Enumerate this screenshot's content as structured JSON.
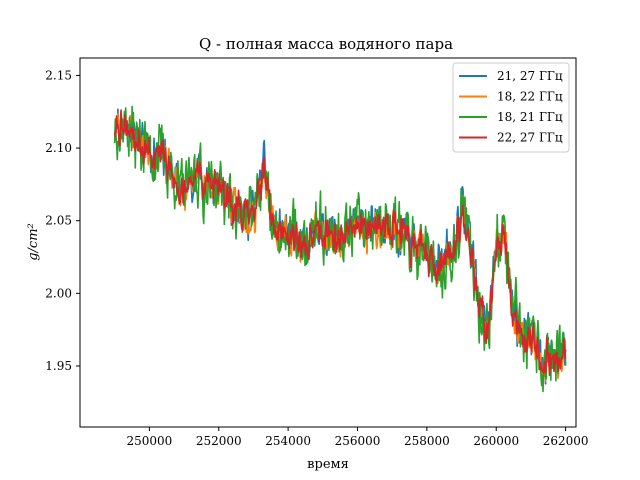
{
  "chart_data": {
    "type": "line",
    "title": "Q - полная масса водяного пара",
    "xlabel": "время",
    "ylabel": "g/cm²",
    "xlim": [
      248000,
      262300
    ],
    "ylim": [
      1.908,
      2.162
    ],
    "x_ticks": [
      250000,
      252000,
      254000,
      256000,
      258000,
      260000,
      262000
    ],
    "x_tick_labels": [
      "250000",
      "252000",
      "254000",
      "256000",
      "258000",
      "260000",
      "262000"
    ],
    "y_ticks": [
      1.95,
      2.0,
      2.05,
      2.1,
      2.15
    ],
    "y_tick_labels": [
      "1.95",
      "2.00",
      "2.05",
      "2.10",
      "2.15"
    ],
    "grid": false,
    "legend_position": "top-right",
    "x_range": [
      249000,
      262000
    ],
    "trend": {
      "x": [
        249000,
        249500,
        250000,
        250500,
        251000,
        251500,
        252000,
        252500,
        253000,
        253300,
        253600,
        254000,
        254500,
        255000,
        255500,
        256000,
        256500,
        257000,
        257500,
        258000,
        258300,
        258700,
        259000,
        259200,
        259500,
        259800,
        260000,
        260200,
        260500,
        260800,
        261000,
        261300,
        261600,
        262000
      ],
      "y": [
        2.115,
        2.112,
        2.098,
        2.09,
        2.068,
        2.08,
        2.075,
        2.058,
        2.054,
        2.086,
        2.04,
        2.042,
        2.033,
        2.046,
        2.038,
        2.046,
        2.046,
        2.049,
        2.035,
        2.025,
        2.022,
        2.025,
        2.057,
        2.04,
        1.993,
        1.97,
        2.04,
        2.045,
        1.983,
        1.97,
        1.975,
        1.958,
        1.955,
        1.955
      ]
    },
    "series": [
      {
        "name": "21, 27 ГГц",
        "color": "#1f77b4",
        "noise": 0.01,
        "seed": 11,
        "offset": 0.001
      },
      {
        "name": "18, 22 ГГц",
        "color": "#ff7f0e",
        "noise": 0.008,
        "seed": 23,
        "offset": -0.001
      },
      {
        "name": "18, 21 ГГц",
        "color": "#2ca02c",
        "noise": 0.016,
        "seed": 37,
        "offset": 0.0
      },
      {
        "name": "22, 27 ГГц",
        "color": "#d62728",
        "noise": 0.007,
        "seed": 53,
        "offset": 0.0
      }
    ]
  }
}
